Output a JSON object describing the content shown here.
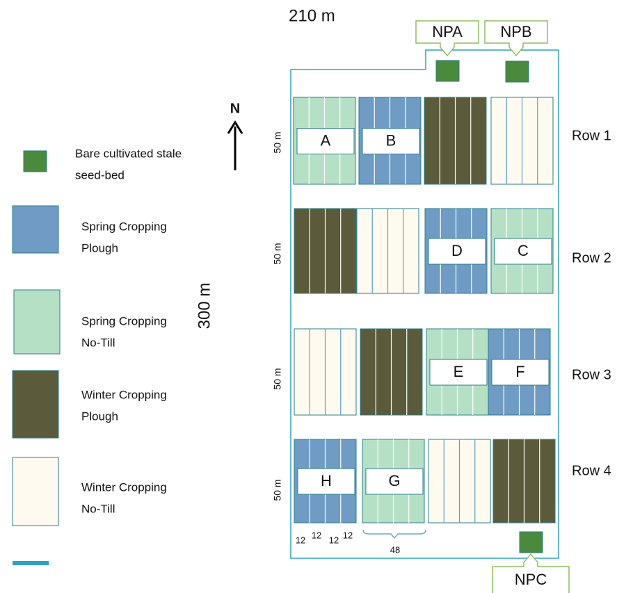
{
  "dimensions": {
    "width": "210 m",
    "height": "300 m",
    "row_heights": [
      "50 m",
      "50 m",
      "50 m",
      "50 m"
    ]
  },
  "north": "N",
  "legend": [
    {
      "color": "#4b8a3c",
      "lines": [
        "Bare cultivated stale",
        "seed-bed"
      ]
    },
    {
      "color": "#6f9bc4",
      "lines": [
        "Spring Cropping",
        "Plough"
      ]
    },
    {
      "color": "#b5e0c6",
      "lines": [
        "Spring Cropping",
        "No-Till"
      ]
    },
    {
      "color": "#5b5b3b",
      "lines": [
        "Winter Cropping",
        "Plough"
      ]
    },
    {
      "color": "#fffaef",
      "lines": [
        "Winter Cropping",
        "No-Till"
      ]
    }
  ],
  "boundary_color": "#2e9fc9",
  "rows": [
    {
      "label": "Row 1",
      "plots": [
        {
          "color": "#b5e0c6",
          "label": "A"
        },
        {
          "color": "#6f9bc4",
          "label": "B"
        },
        {
          "color": "#5b5b3b",
          "label": null
        },
        {
          "color": "#fffaef",
          "label": null
        }
      ]
    },
    {
      "label": "Row 2",
      "plots": [
        {
          "color": "#5b5b3b",
          "label": null
        },
        {
          "color": "#fffaef",
          "label": null
        },
        {
          "color": "#6f9bc4",
          "label": "D"
        },
        {
          "color": "#b5e0c6",
          "label": "C"
        }
      ]
    },
    {
      "label": "Row 3",
      "plots": [
        {
          "color": "#fffaef",
          "label": null
        },
        {
          "color": "#5b5b3b",
          "label": null
        },
        {
          "color": "#b5e0c6",
          "label": "E"
        },
        {
          "color": "#6f9bc4",
          "label": "F"
        }
      ]
    },
    {
      "label": "Row 4",
      "plots": [
        {
          "color": "#6f9bc4",
          "label": "H"
        },
        {
          "color": "#b5e0c6",
          "label": "G"
        },
        {
          "color": "#fffaef",
          "label": null
        },
        {
          "color": "#5b5b3b",
          "label": null
        }
      ]
    }
  ],
  "control_plots": [
    "NPA",
    "NPB",
    "NPC"
  ],
  "strip_widths": [
    "12",
    "12",
    "12",
    "12"
  ],
  "plot_width": "48"
}
